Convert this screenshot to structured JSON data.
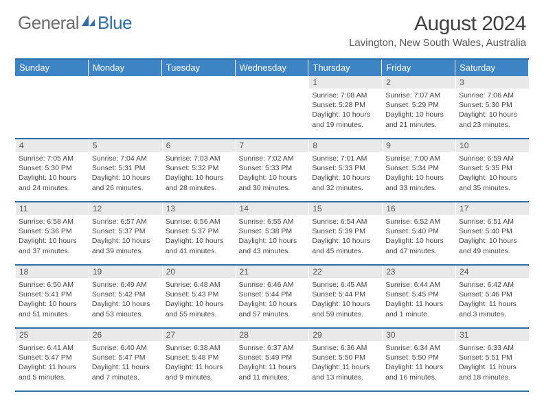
{
  "brand": {
    "part1": "General",
    "part2": "Blue"
  },
  "title": "August 2024",
  "location": "Lavington, New South Wales, Australia",
  "colors": {
    "header_bg": "#3d84c4",
    "border": "#2f6fa8",
    "daynum_bg": "#e9e9e9",
    "text": "#444444"
  },
  "day_headers": [
    "Sunday",
    "Monday",
    "Tuesday",
    "Wednesday",
    "Thursday",
    "Friday",
    "Saturday"
  ],
  "weeks": [
    [
      {
        "n": "",
        "sr": "",
        "ss": "",
        "dl": ""
      },
      {
        "n": "",
        "sr": "",
        "ss": "",
        "dl": ""
      },
      {
        "n": "",
        "sr": "",
        "ss": "",
        "dl": ""
      },
      {
        "n": "",
        "sr": "",
        "ss": "",
        "dl": ""
      },
      {
        "n": "1",
        "sr": "7:08 AM",
        "ss": "5:28 PM",
        "dl": "10 hours and 19 minutes."
      },
      {
        "n": "2",
        "sr": "7:07 AM",
        "ss": "5:29 PM",
        "dl": "10 hours and 21 minutes."
      },
      {
        "n": "3",
        "sr": "7:06 AM",
        "ss": "5:30 PM",
        "dl": "10 hours and 23 minutes."
      }
    ],
    [
      {
        "n": "4",
        "sr": "7:05 AM",
        "ss": "5:30 PM",
        "dl": "10 hours and 24 minutes."
      },
      {
        "n": "5",
        "sr": "7:04 AM",
        "ss": "5:31 PM",
        "dl": "10 hours and 26 minutes."
      },
      {
        "n": "6",
        "sr": "7:03 AM",
        "ss": "5:32 PM",
        "dl": "10 hours and 28 minutes."
      },
      {
        "n": "7",
        "sr": "7:02 AM",
        "ss": "5:33 PM",
        "dl": "10 hours and 30 minutes."
      },
      {
        "n": "8",
        "sr": "7:01 AM",
        "ss": "5:33 PM",
        "dl": "10 hours and 32 minutes."
      },
      {
        "n": "9",
        "sr": "7:00 AM",
        "ss": "5:34 PM",
        "dl": "10 hours and 33 minutes."
      },
      {
        "n": "10",
        "sr": "6:59 AM",
        "ss": "5:35 PM",
        "dl": "10 hours and 35 minutes."
      }
    ],
    [
      {
        "n": "11",
        "sr": "6:58 AM",
        "ss": "5:36 PM",
        "dl": "10 hours and 37 minutes."
      },
      {
        "n": "12",
        "sr": "6:57 AM",
        "ss": "5:37 PM",
        "dl": "10 hours and 39 minutes."
      },
      {
        "n": "13",
        "sr": "6:56 AM",
        "ss": "5:37 PM",
        "dl": "10 hours and 41 minutes."
      },
      {
        "n": "14",
        "sr": "6:55 AM",
        "ss": "5:38 PM",
        "dl": "10 hours and 43 minutes."
      },
      {
        "n": "15",
        "sr": "6:54 AM",
        "ss": "5:39 PM",
        "dl": "10 hours and 45 minutes."
      },
      {
        "n": "16",
        "sr": "6:52 AM",
        "ss": "5:40 PM",
        "dl": "10 hours and 47 minutes."
      },
      {
        "n": "17",
        "sr": "6:51 AM",
        "ss": "5:40 PM",
        "dl": "10 hours and 49 minutes."
      }
    ],
    [
      {
        "n": "18",
        "sr": "6:50 AM",
        "ss": "5:41 PM",
        "dl": "10 hours and 51 minutes."
      },
      {
        "n": "19",
        "sr": "6:49 AM",
        "ss": "5:42 PM",
        "dl": "10 hours and 53 minutes."
      },
      {
        "n": "20",
        "sr": "6:48 AM",
        "ss": "5:43 PM",
        "dl": "10 hours and 55 minutes."
      },
      {
        "n": "21",
        "sr": "6:46 AM",
        "ss": "5:44 PM",
        "dl": "10 hours and 57 minutes."
      },
      {
        "n": "22",
        "sr": "6:45 AM",
        "ss": "5:44 PM",
        "dl": "10 hours and 59 minutes."
      },
      {
        "n": "23",
        "sr": "6:44 AM",
        "ss": "5:45 PM",
        "dl": "11 hours and 1 minute."
      },
      {
        "n": "24",
        "sr": "6:42 AM",
        "ss": "5:46 PM",
        "dl": "11 hours and 3 minutes."
      }
    ],
    [
      {
        "n": "25",
        "sr": "6:41 AM",
        "ss": "5:47 PM",
        "dl": "11 hours and 5 minutes."
      },
      {
        "n": "26",
        "sr": "6:40 AM",
        "ss": "5:47 PM",
        "dl": "11 hours and 7 minutes."
      },
      {
        "n": "27",
        "sr": "6:38 AM",
        "ss": "5:48 PM",
        "dl": "11 hours and 9 minutes."
      },
      {
        "n": "28",
        "sr": "6:37 AM",
        "ss": "5:49 PM",
        "dl": "11 hours and 11 minutes."
      },
      {
        "n": "29",
        "sr": "6:36 AM",
        "ss": "5:50 PM",
        "dl": "11 hours and 13 minutes."
      },
      {
        "n": "30",
        "sr": "6:34 AM",
        "ss": "5:50 PM",
        "dl": "11 hours and 16 minutes."
      },
      {
        "n": "31",
        "sr": "6:33 AM",
        "ss": "5:51 PM",
        "dl": "11 hours and 18 minutes."
      }
    ]
  ],
  "labels": {
    "sunrise": "Sunrise:",
    "sunset": "Sunset:",
    "daylight": "Daylight:"
  }
}
